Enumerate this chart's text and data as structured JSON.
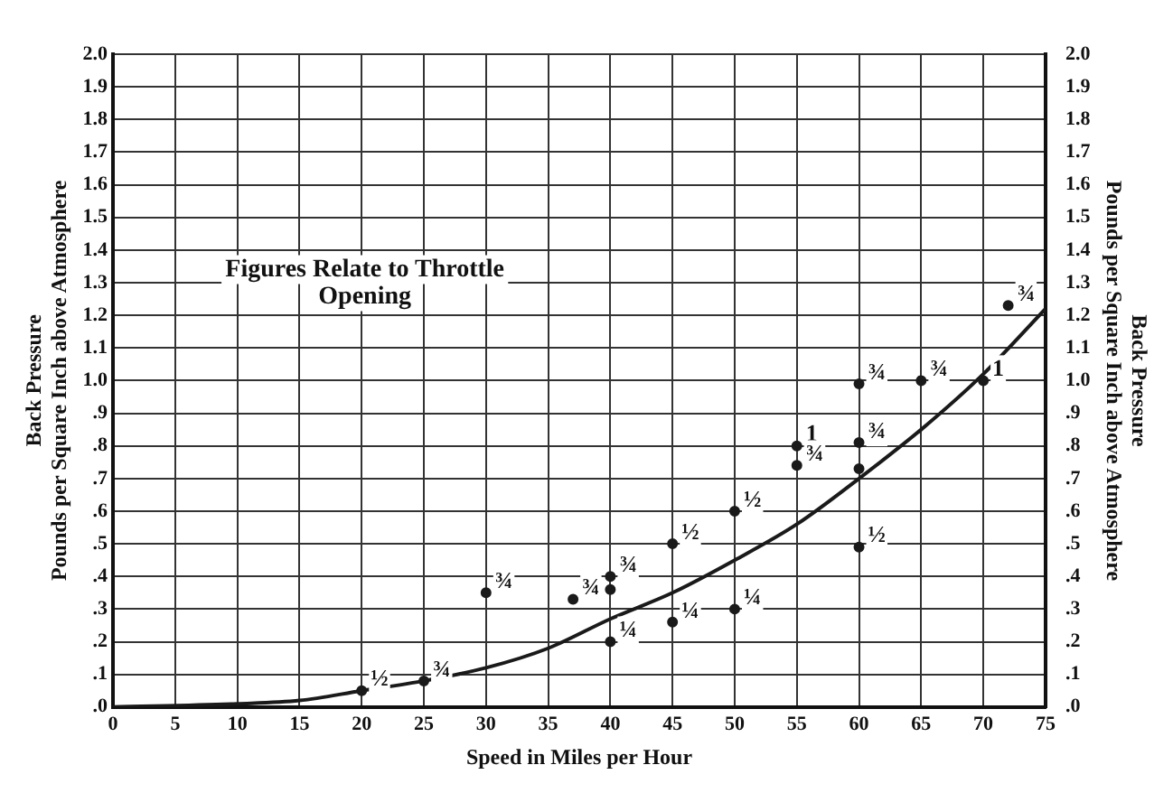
{
  "chart_data": {
    "type": "scatter",
    "xlabel": "Speed in Miles per Hour",
    "ylabel": "Back Pressure\nPounds per Square Inch above Atmosphere",
    "y2label": "Back Pressure\nPounds per Square Inch above Atmosphere",
    "annotations": [
      "Figures Relate to Throttle Opening"
    ],
    "xlim": [
      0,
      75
    ],
    "xticks": [
      0,
      5,
      10,
      15,
      20,
      25,
      30,
      35,
      40,
      45,
      50,
      55,
      60,
      65,
      70,
      75
    ],
    "ylim": [
      0,
      2
    ],
    "yticks": [
      {
        "value": 0,
        "label": ".0"
      },
      {
        "value": 0.1,
        "label": ".1"
      },
      {
        "value": 0.2,
        "label": ".2"
      },
      {
        "value": 0.3,
        "label": ".3"
      },
      {
        "value": 0.4,
        "label": ".4"
      },
      {
        "value": 0.5,
        "label": ".5"
      },
      {
        "value": 0.6,
        "label": ".6"
      },
      {
        "value": 0.7,
        "label": ".7"
      },
      {
        "value": 0.8,
        "label": ".8"
      },
      {
        "value": 0.9,
        "label": ".9"
      },
      {
        "value": 1,
        "label": "1.0"
      },
      {
        "value": 1.1,
        "label": "1.1"
      },
      {
        "value": 1.2,
        "label": "1.2"
      },
      {
        "value": 1.3,
        "label": "1.3"
      },
      {
        "value": 1.4,
        "label": "1.4"
      },
      {
        "value": 1.5,
        "label": "1.5"
      },
      {
        "value": 1.6,
        "label": "1.6"
      },
      {
        "value": 1.7,
        "label": "1.7"
      },
      {
        "value": 1.8,
        "label": "1.8"
      },
      {
        "value": 1.9,
        "label": "1.9"
      },
      {
        "value": 2,
        "label": "2.0"
      }
    ],
    "y2lim": [
      0,
      2
    ],
    "y2ticks": [
      {
        "value": 0,
        "label": ".0"
      },
      {
        "value": 0.1,
        "label": ".1"
      },
      {
        "value": 0.2,
        "label": ".2"
      },
      {
        "value": 0.3,
        "label": ".3"
      },
      {
        "value": 0.4,
        "label": ".4"
      },
      {
        "value": 0.5,
        "label": ".5"
      },
      {
        "value": 0.6,
        "label": ".6"
      },
      {
        "value": 0.7,
        "label": ".7"
      },
      {
        "value": 0.8,
        "label": ".8"
      },
      {
        "value": 0.9,
        "label": ".9"
      },
      {
        "value": 1,
        "label": "1.0"
      },
      {
        "value": 1.1,
        "label": "1.1"
      },
      {
        "value": 1.2,
        "label": "1.2"
      },
      {
        "value": 1.3,
        "label": "1.3"
      },
      {
        "value": 1.4,
        "label": "1.4"
      },
      {
        "value": 1.5,
        "label": "1.5"
      },
      {
        "value": 1.6,
        "label": "1.6"
      },
      {
        "value": 1.7,
        "label": "1.7"
      },
      {
        "value": 1.8,
        "label": "1.8"
      },
      {
        "value": 1.9,
        "label": "1.9"
      },
      {
        "value": 2,
        "label": "2.0"
      }
    ],
    "grid": true,
    "legend": false,
    "marker": "circle",
    "series": [
      {
        "type": "scatter",
        "color": "#1a1a1a",
        "x": [
          20,
          25,
          30,
          37,
          40,
          40,
          40,
          45,
          45,
          50,
          50,
          55,
          55,
          60,
          60,
          60,
          60,
          65,
          70,
          72
        ],
        "values": [
          0.05,
          0.08,
          0.35,
          0.33,
          0.4,
          0.36,
          0.2,
          0.26,
          0.5,
          0.3,
          0.6,
          0.8,
          0.74,
          0.81,
          0.73,
          0.49,
          0.99,
          1.0,
          1.0,
          1.23
        ],
        "value_labels": [
          "½",
          "¾",
          "¾",
          "¾",
          "¾",
          null,
          "¼",
          "¼",
          "½",
          "¼",
          "½",
          "1",
          "¾",
          "¾",
          null,
          "½",
          "¾",
          "¾",
          "1",
          "¾"
        ]
      },
      {
        "type": "line",
        "color": "#1a1a1a",
        "marker": "none",
        "line_style": "solid",
        "x": [
          0,
          10,
          15,
          20,
          25,
          30,
          35,
          40,
          45,
          50,
          55,
          60,
          65,
          70,
          75
        ],
        "values": [
          0,
          0.01,
          0.02,
          0.05,
          0.08,
          0.12,
          0.18,
          0.27,
          0.35,
          0.45,
          0.56,
          0.7,
          0.85,
          1.02,
          1.22
        ]
      }
    ]
  }
}
